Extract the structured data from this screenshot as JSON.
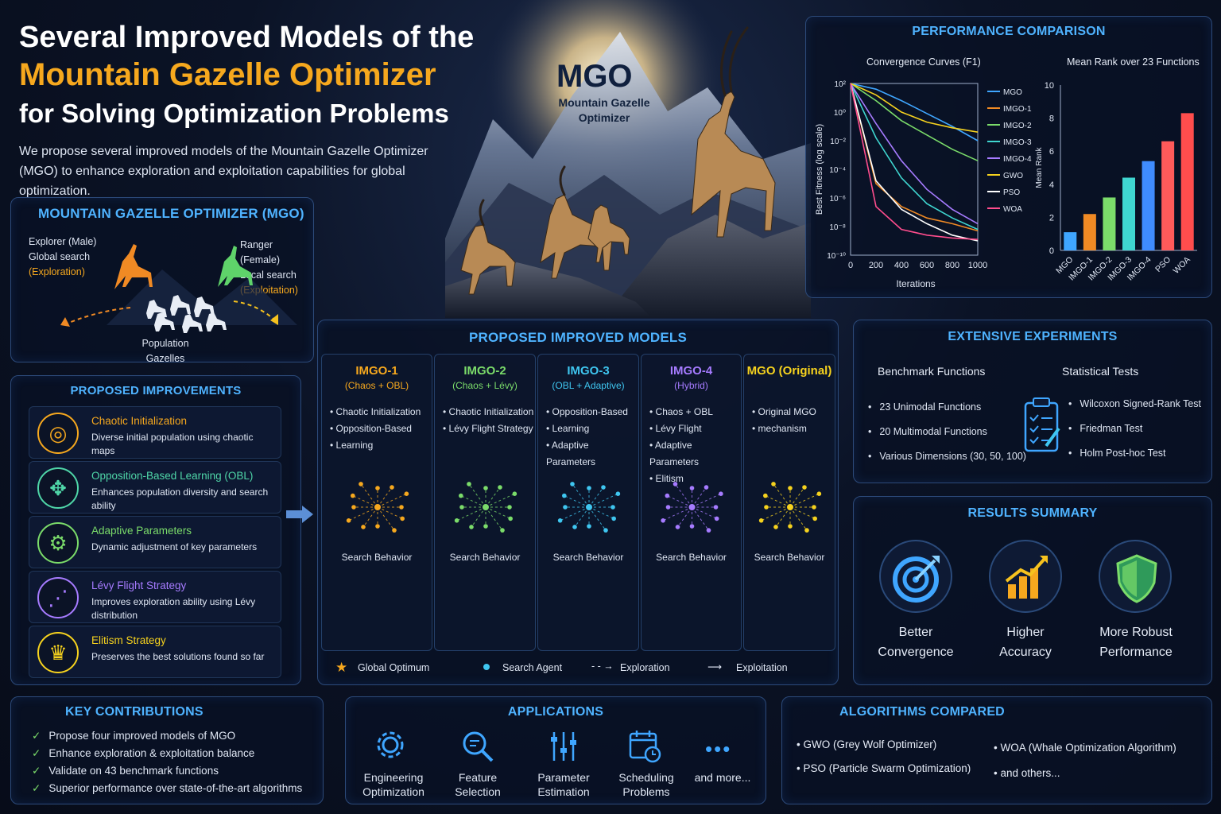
{
  "header": {
    "title_line1": "Several Improved Models of the",
    "title_line2": "Mountain Gazelle Optimizer",
    "title_line3": "for Solving Optimization Problems",
    "subtitle": "We propose several improved models of the Mountain Gazelle Optimizer (MGO) to enhance exploration and exploitation capabilities for global optimization."
  },
  "hero": {
    "logo": "MGO",
    "logo_sub": "Mountain Gazelle Optimizer"
  },
  "mgo_panel": {
    "title": "MOUNTAIN GAZELLE OPTIMIZER (MGO)",
    "explorer": {
      "line1": "Explorer (Male)",
      "line2": "Global search",
      "line3": "(Exploration)"
    },
    "ranger": {
      "line1": "Ranger (Female)",
      "line2": "Local search",
      "line3": "(Exploitation)"
    },
    "population": {
      "line1": "Population",
      "line2": "Gazelles"
    }
  },
  "improvements": {
    "title": "PROPOSED IMPROVEMENTS",
    "items": [
      {
        "title": "Chaotic Initialization",
        "desc": "Diverse initial population using chaotic maps",
        "color": "#f6a81e",
        "icon": "spiral-icon"
      },
      {
        "title": "Opposition-Based Learning (OBL)",
        "desc": "Enhances population diversity and search ability",
        "color": "#4fd6a8",
        "icon": "arrows-icon"
      },
      {
        "title": "Adaptive Parameters",
        "desc": "Dynamic adjustment of key parameters",
        "color": "#7bdc6a",
        "icon": "gear-icon"
      },
      {
        "title": "Lévy Flight Strategy",
        "desc": "Improves exploration ability using Lévy distribution",
        "color": "#a67bff",
        "icon": "levy-path-icon"
      },
      {
        "title": "Elitism Strategy",
        "desc": "Preserves the best solutions found so far",
        "color": "#f6d21e",
        "icon": "trophy-icon"
      }
    ]
  },
  "models": {
    "title": "PROPOSED IMPROVED MODELS",
    "search_behavior": "Search Behavior",
    "columns": [
      {
        "name": "IMGO-1",
        "sub": "(Chaos + OBL)",
        "color": "#f6a81e",
        "items": [
          "Chaotic Initialization",
          "Opposition-Based",
          "Learning"
        ]
      },
      {
        "name": "IMGO-2",
        "sub": "(Chaos + Lévy)",
        "color": "#7bdc6a",
        "items": [
          "Chaotic Initialization",
          "Lévy Flight Strategy"
        ]
      },
      {
        "name": "IMGO-3",
        "sub": "(OBL + Adaptive)",
        "color": "#3fc6f0",
        "items": [
          "Opposition-Based",
          "Learning",
          "Adaptive Parameters"
        ]
      },
      {
        "name": "IMGO-4",
        "sub": "(Hybrid)",
        "color": "#a67bff",
        "items": [
          "Chaos + OBL",
          "Lévy Flight",
          "Adaptive Parameters",
          "Elitism"
        ]
      },
      {
        "name": "MGO (Original)",
        "sub": "",
        "color": "#f6d21e",
        "items": [
          "Original MGO",
          "mechanism"
        ]
      }
    ],
    "legend": {
      "optimum": "Global Optimum",
      "agent": "Search Agent",
      "exploration": "Exploration",
      "exploitation": "Exploitation"
    }
  },
  "performance": {
    "title": "PERFORMANCE COMPARISON",
    "convergence": {
      "title": "Convergence Curves (F1)",
      "xlabel": "Iterations",
      "ylabel": "Best Fitness (log scale)",
      "x_ticks": [
        "0",
        "200",
        "400",
        "600",
        "800",
        "1000"
      ],
      "y_ticks": [
        "10²",
        "10⁰",
        "10⁻²",
        "10⁻⁴",
        "10⁻⁶",
        "10⁻⁸",
        "10⁻¹⁰"
      ]
    },
    "rank": {
      "title": "Mean Rank over 23 Functions",
      "ylabel": "Mean Rank",
      "y_ticks": [
        "0",
        "2",
        "4",
        "6",
        "8",
        "10"
      ],
      "x_labels": [
        "MGO",
        "IMGO-1",
        "IMGO-2",
        "IMGO-3",
        "IMGO-4",
        "PSO",
        "WOA"
      ]
    }
  },
  "chart_data": [
    {
      "type": "line",
      "title": "Convergence Curves (F1)",
      "xlabel": "Iterations",
      "ylabel": "Best Fitness (log scale)",
      "xlim": [
        0,
        1000
      ],
      "ylim_log10": [
        -10,
        2
      ],
      "y_scale": "log",
      "legend_position": "right",
      "x": [
        0,
        200,
        400,
        600,
        800,
        1000
      ],
      "series": [
        {
          "name": "MGO",
          "color": "#3fa6ff",
          "log10_values": [
            2,
            1.6,
            0.8,
            -0.1,
            -1,
            -2
          ]
        },
        {
          "name": "IMGO-1",
          "color": "#f08a24",
          "log10_values": [
            2,
            -5,
            -6.6,
            -7.4,
            -7.8,
            -8.3
          ]
        },
        {
          "name": "IMGO-2",
          "color": "#7bdc6a",
          "log10_values": [
            2,
            0.8,
            -0.6,
            -1.6,
            -2.6,
            -3.4
          ]
        },
        {
          "name": "IMGO-3",
          "color": "#3fd6d0",
          "log10_values": [
            2,
            -1.8,
            -4.6,
            -6.4,
            -7.4,
            -8.2
          ]
        },
        {
          "name": "IMGO-4",
          "color": "#a67bff",
          "log10_values": [
            2,
            -0.8,
            -3.4,
            -5.4,
            -6.8,
            -7.8
          ]
        },
        {
          "name": "GWO",
          "color": "#f6d21e",
          "log10_values": [
            2,
            1.2,
            0,
            -0.7,
            -1.1,
            -1.4
          ]
        },
        {
          "name": "PSO",
          "color": "#ffffff",
          "log10_values": [
            2,
            -4.8,
            -6.8,
            -7.8,
            -8.6,
            -9
          ]
        },
        {
          "name": "WOA",
          "color": "#ff4d8d",
          "log10_values": [
            2,
            -6.6,
            -8.2,
            -8.6,
            -8.8,
            -8.9
          ]
        }
      ]
    },
    {
      "type": "bar",
      "title": "Mean Rank over 23 Functions",
      "ylabel": "Mean Rank",
      "ylim": [
        0,
        10
      ],
      "categories": [
        "MGO",
        "IMGO-1",
        "IMGO-2",
        "IMGO-3",
        "IMGO-4",
        "PSO",
        "WOA"
      ],
      "values": [
        1.1,
        2.2,
        3.2,
        4.4,
        5.4,
        6.6,
        8.3
      ],
      "colors": [
        "#3fa6ff",
        "#f08a24",
        "#7bdc6a",
        "#3fd6d0",
        "#3f8cff",
        "#ff5a5a",
        "#ff4d4d"
      ]
    }
  ],
  "experiments": {
    "title": "EXTENSIVE EXPERIMENTS",
    "benchmark_title": "Benchmark Functions",
    "benchmark_items": [
      "23 Unimodal Functions",
      "20 Multimodal Functions",
      "Various Dimensions (30, 50, 100)"
    ],
    "stats_title": "Statistical Tests",
    "stats_items": [
      "Wilcoxon Signed-Rank Test",
      "Friedman Test",
      "Holm Post-hoc Test"
    ]
  },
  "results": {
    "title": "RESULTS SUMMARY",
    "items": [
      {
        "line1": "Better",
        "line2": "Convergence"
      },
      {
        "line1": "Higher",
        "line2": "Accuracy"
      },
      {
        "line1": "More Robust",
        "line2": "Performance"
      }
    ]
  },
  "contributions": {
    "title": "KEY CONTRIBUTIONS",
    "items": [
      "Propose four improved models of MGO",
      "Enhance exploration & exploitation balance",
      "Validate on 43 benchmark functions",
      "Superior performance over state-of-the-art algorithms"
    ]
  },
  "applications": {
    "title": "APPLICATIONS",
    "items": [
      {
        "line1": "Engineering",
        "line2": "Optimization"
      },
      {
        "line1": "Feature",
        "line2": "Selection"
      },
      {
        "line1": "Parameter",
        "line2": "Estimation"
      },
      {
        "line1": "Scheduling",
        "line2": "Problems"
      },
      {
        "line1": "and more...",
        "line2": ""
      }
    ]
  },
  "algorithms": {
    "title": "ALGORITHMS COMPARED",
    "items": [
      "GWO (Grey Wolf Optimizer)",
      "PSO (Particle Swarm Optimization)",
      "WOA (Whale Optimization Algorithm)",
      "and others..."
    ]
  }
}
